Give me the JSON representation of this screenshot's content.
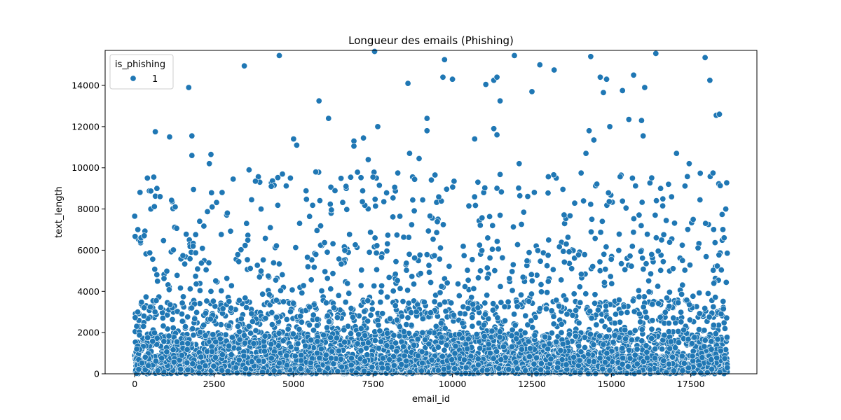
{
  "chart_data": {
    "type": "scatter",
    "title": "Longueur des emails (Phishing)",
    "xlabel": "email_id",
    "ylabel": "text_length",
    "xlim": [
      -930,
      19580
    ],
    "ylim": [
      0,
      15700
    ],
    "xticks": [
      0,
      2500,
      5000,
      7500,
      10000,
      12500,
      15000,
      17500
    ],
    "yticks": [
      0,
      2000,
      4000,
      6000,
      8000,
      10000,
      12000,
      14000
    ],
    "grid": false,
    "legend": {
      "title": "is_phishing",
      "placement": "top-left",
      "entries": [
        "1"
      ]
    },
    "series": [
      {
        "name": "1",
        "color": "#1f77b4",
        "n_points": 18650,
        "x_range": [
          0,
          18650
        ],
        "description_distribution": "dense below 2000, sparse up to 15700",
        "outliers": [
          [
            0,
            7650
          ],
          [
            100,
            7000
          ],
          [
            200,
            6600
          ],
          [
            300,
            6700
          ],
          [
            400,
            9500
          ],
          [
            600,
            9550
          ],
          [
            650,
            11750
          ],
          [
            700,
            9000
          ],
          [
            800,
            8600
          ],
          [
            1100,
            11500
          ],
          [
            1700,
            13900
          ],
          [
            1800,
            11550
          ],
          [
            1800,
            10600
          ],
          [
            1850,
            8950
          ],
          [
            2350,
            10200
          ],
          [
            2400,
            10650
          ],
          [
            2750,
            8800
          ],
          [
            3100,
            9450
          ],
          [
            3450,
            14950
          ],
          [
            3600,
            9900
          ],
          [
            3800,
            9350
          ],
          [
            4300,
            9100
          ],
          [
            4550,
            15450
          ],
          [
            4650,
            9700
          ],
          [
            4900,
            9500
          ],
          [
            5000,
            11400
          ],
          [
            5100,
            11100
          ],
          [
            5700,
            9800
          ],
          [
            5800,
            13250
          ],
          [
            6100,
            12400
          ],
          [
            6650,
            9100
          ],
          [
            6900,
            11300
          ],
          [
            6900,
            11050
          ],
          [
            7200,
            11450
          ],
          [
            7350,
            10400
          ],
          [
            7500,
            9550
          ],
          [
            7550,
            15650
          ],
          [
            7650,
            12000
          ],
          [
            7700,
            9150
          ],
          [
            8600,
            14100
          ],
          [
            8650,
            10700
          ],
          [
            8950,
            10450
          ],
          [
            9200,
            12400
          ],
          [
            9200,
            11800
          ],
          [
            9450,
            9650
          ],
          [
            9700,
            14400
          ],
          [
            9750,
            15250
          ],
          [
            10000,
            14300
          ],
          [
            10050,
            9350
          ],
          [
            10700,
            11400
          ],
          [
            10800,
            9300
          ],
          [
            11050,
            14050
          ],
          [
            11300,
            14250
          ],
          [
            11300,
            11900
          ],
          [
            11400,
            14400
          ],
          [
            11400,
            11600
          ],
          [
            11500,
            13250
          ],
          [
            11950,
            15450
          ],
          [
            12100,
            10200
          ],
          [
            12500,
            13700
          ],
          [
            12750,
            15000
          ],
          [
            13200,
            14750
          ],
          [
            14050,
            9750
          ],
          [
            14200,
            10700
          ],
          [
            14300,
            11800
          ],
          [
            14350,
            15400
          ],
          [
            14450,
            11350
          ],
          [
            14650,
            14400
          ],
          [
            14750,
            13650
          ],
          [
            14850,
            14300
          ],
          [
            14950,
            12000
          ],
          [
            15350,
            13750
          ],
          [
            15550,
            12350
          ],
          [
            15700,
            14500
          ],
          [
            15950,
            12300
          ],
          [
            16000,
            11550
          ],
          [
            16050,
            13900
          ],
          [
            16400,
            15550
          ],
          [
            16550,
            9000
          ],
          [
            16800,
            9200
          ],
          [
            17050,
            10700
          ],
          [
            17450,
            10200
          ],
          [
            17950,
            15350
          ],
          [
            18100,
            14250
          ],
          [
            18200,
            9750
          ],
          [
            18300,
            12550
          ],
          [
            18400,
            12600
          ],
          [
            18600,
            8000
          ],
          [
            18550,
            6600
          ],
          [
            18650,
            300
          ]
        ]
      }
    ]
  }
}
